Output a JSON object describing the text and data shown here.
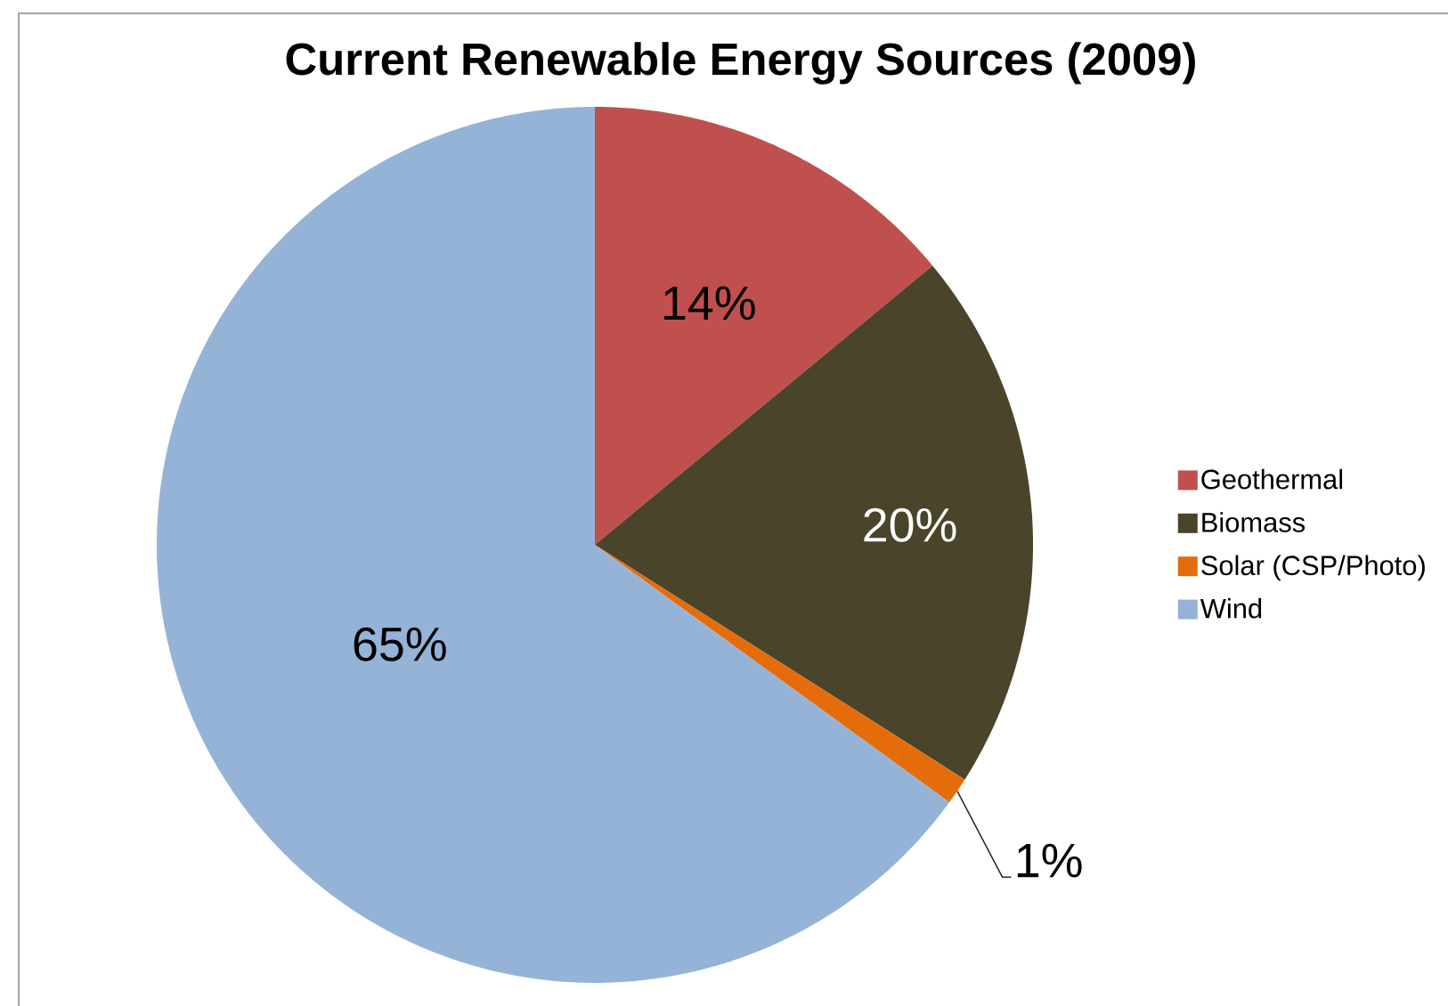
{
  "chart_data": {
    "type": "pie",
    "title": "Current Renewable Energy Sources (2009)",
    "categories": [
      "Geothermal",
      "Biomass",
      "Solar (CSP/Photo)",
      "Wind"
    ],
    "values": [
      14,
      20,
      1,
      65
    ],
    "colors": [
      "#c0504d",
      "#4a452a",
      "#e46c0a",
      "#95b3d7"
    ],
    "value_labels": [
      "14%",
      "20%",
      "1%",
      "65%"
    ],
    "legend": "right"
  }
}
